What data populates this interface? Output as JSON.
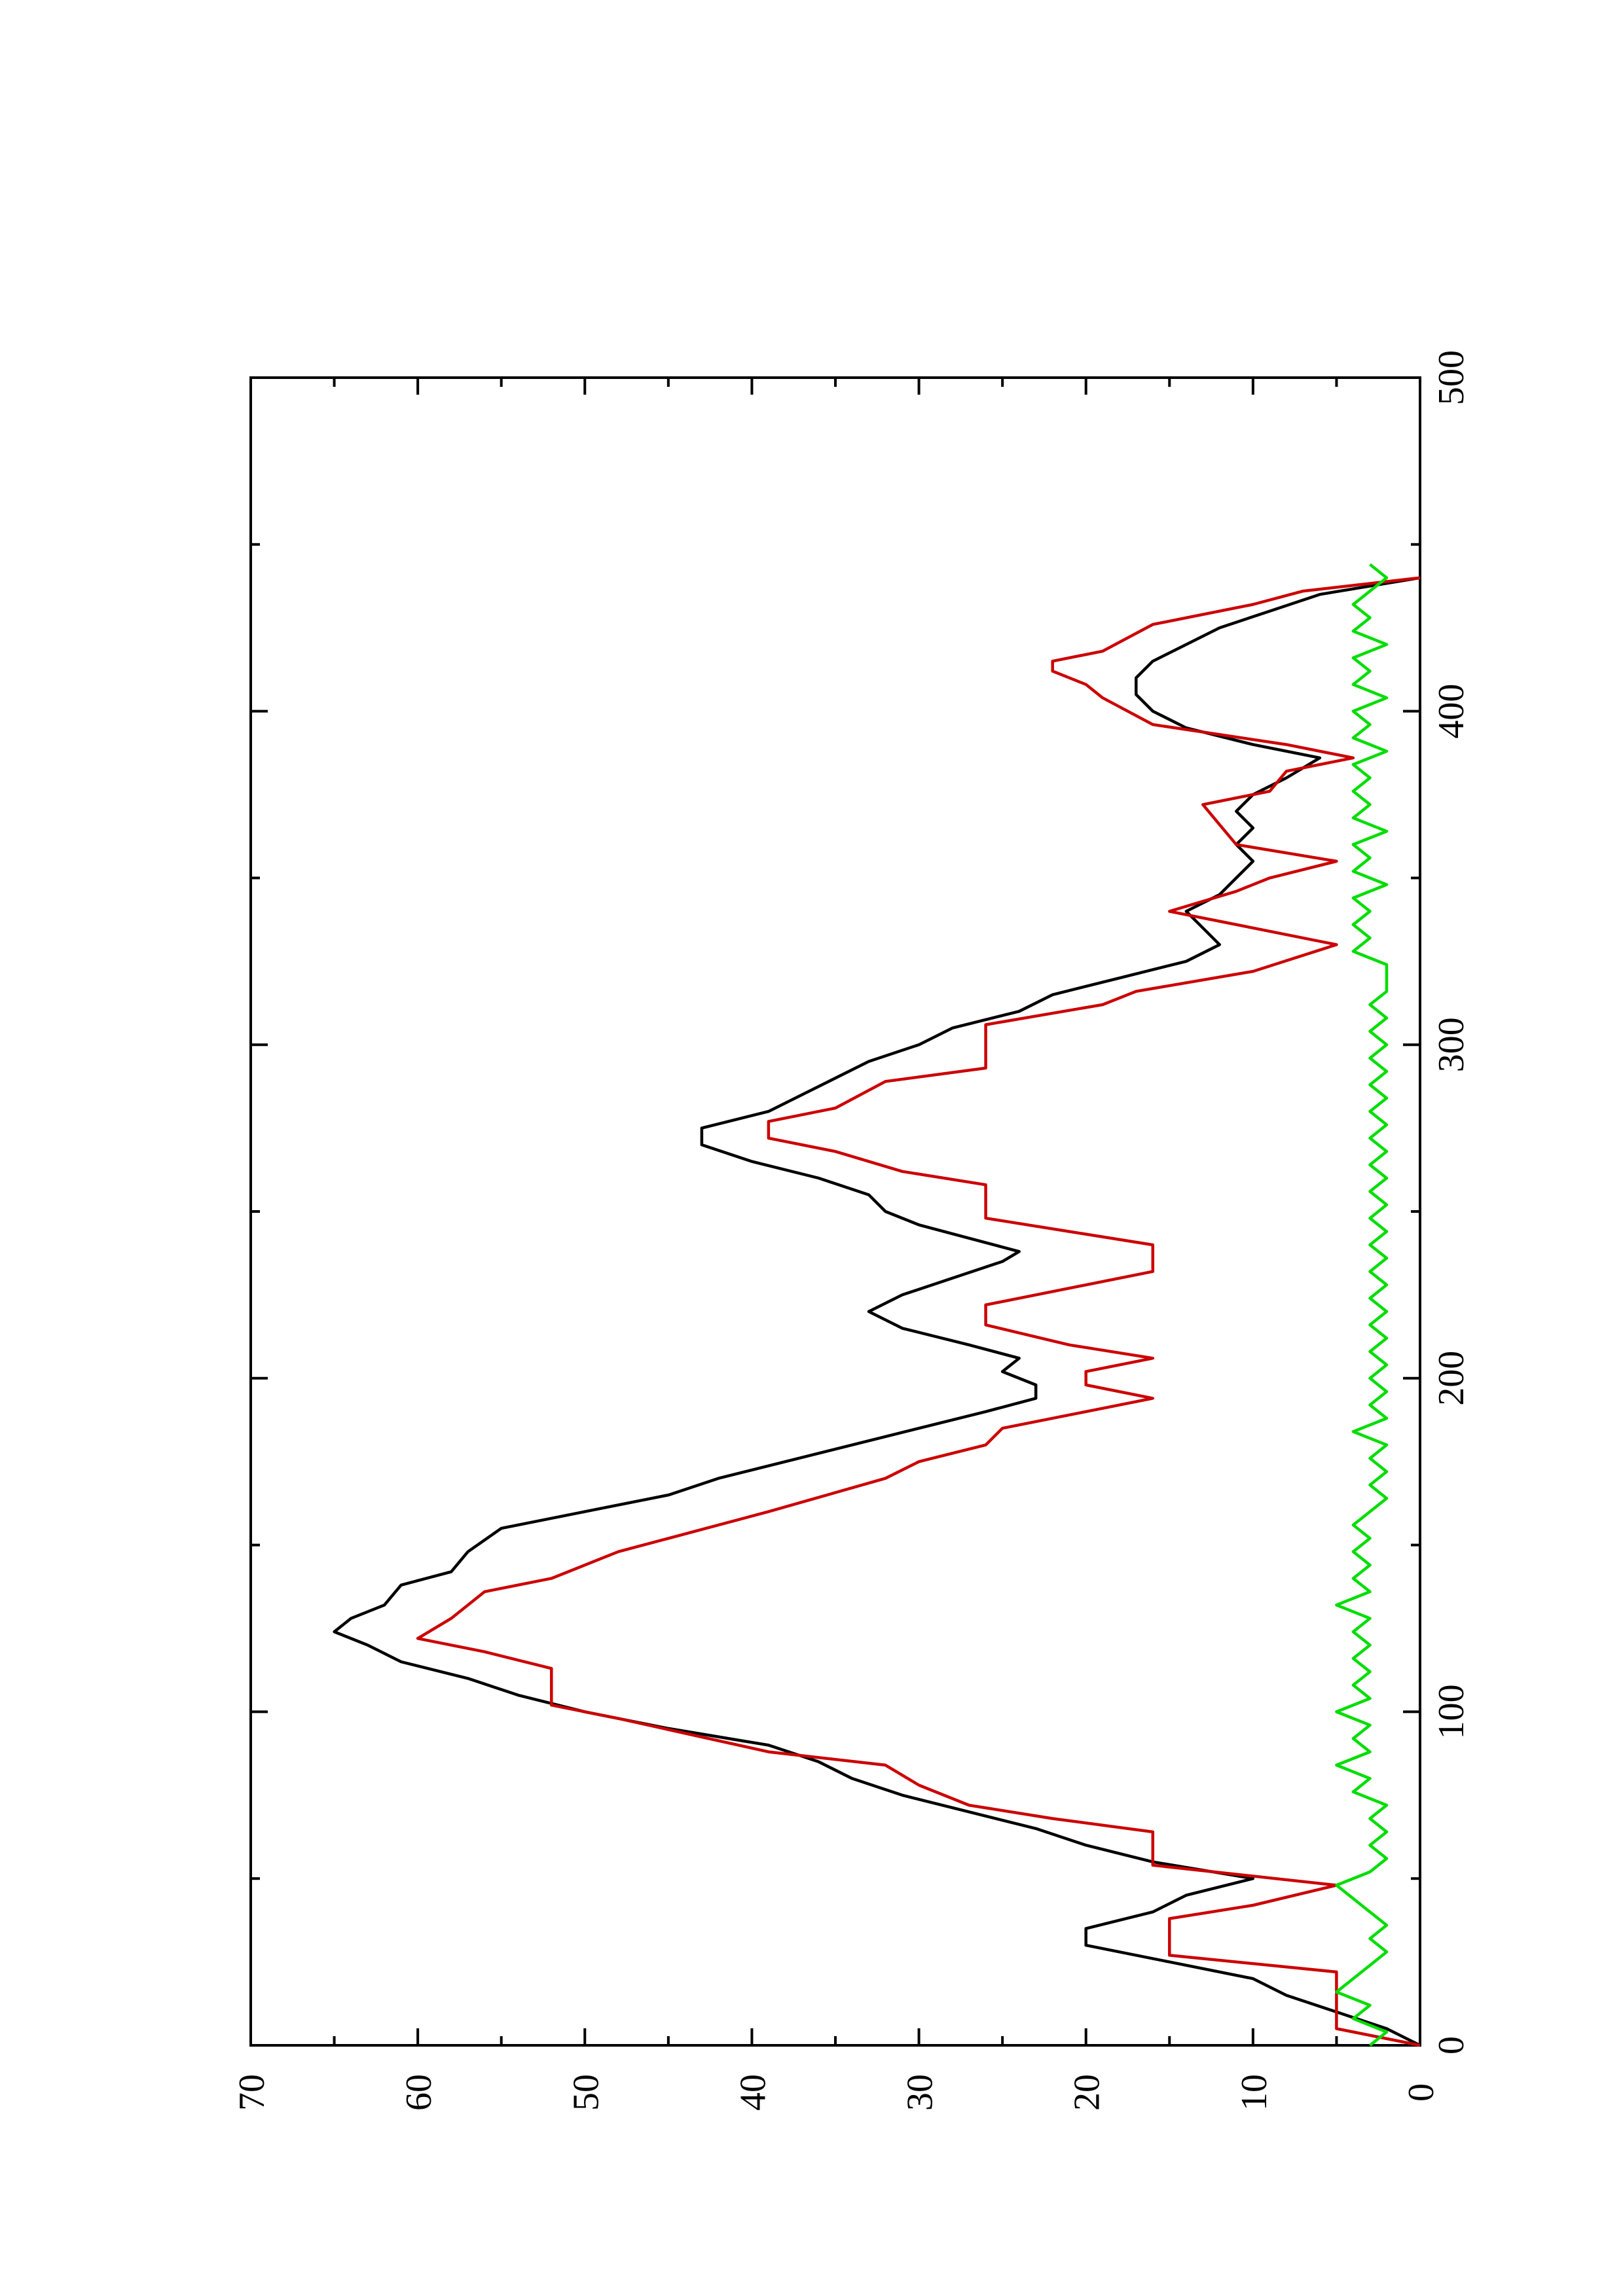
{
  "chart_data": {
    "type": "line",
    "orientation": "rotated-90-ccw",
    "title": "",
    "xlabel": "",
    "ylabel": "",
    "xlim": [
      0,
      500
    ],
    "ylim": [
      0,
      70
    ],
    "x_ticks": [
      0,
      100,
      200,
      300,
      400,
      500
    ],
    "x_minor_ticks": [
      50,
      150,
      250,
      350,
      450
    ],
    "y_ticks": [
      0,
      10,
      20,
      30,
      40,
      50,
      60,
      70
    ],
    "y_minor_ticks": [
      5,
      15,
      25,
      35,
      45,
      55,
      65
    ],
    "grid": false,
    "legend": "none",
    "series": [
      {
        "color": "#000000",
        "points": [
          [
            0,
            0
          ],
          [
            5,
            2
          ],
          [
            10,
            5
          ],
          [
            15,
            8
          ],
          [
            20,
            10
          ],
          [
            25,
            15
          ],
          [
            30,
            20
          ],
          [
            35,
            20
          ],
          [
            40,
            16
          ],
          [
            45,
            14
          ],
          [
            50,
            10
          ],
          [
            55,
            16
          ],
          [
            60,
            20
          ],
          [
            65,
            23
          ],
          [
            70,
            27
          ],
          [
            75,
            31
          ],
          [
            80,
            34
          ],
          [
            85,
            36
          ],
          [
            90,
            39
          ],
          [
            95,
            45
          ],
          [
            100,
            50
          ],
          [
            105,
            54
          ],
          [
            110,
            57
          ],
          [
            115,
            61
          ],
          [
            120,
            63
          ],
          [
            124,
            65
          ],
          [
            128,
            64
          ],
          [
            132,
            62
          ],
          [
            138,
            61
          ],
          [
            142,
            58
          ],
          [
            148,
            57
          ],
          [
            155,
            55
          ],
          [
            160,
            50
          ],
          [
            165,
            45
          ],
          [
            170,
            42
          ],
          [
            175,
            38
          ],
          [
            180,
            34
          ],
          [
            185,
            30
          ],
          [
            190,
            26
          ],
          [
            194,
            23
          ],
          [
            198,
            23
          ],
          [
            202,
            25
          ],
          [
            206,
            24
          ],
          [
            210,
            27
          ],
          [
            215,
            31
          ],
          [
            220,
            33
          ],
          [
            225,
            31
          ],
          [
            230,
            28
          ],
          [
            235,
            25
          ],
          [
            238,
            24
          ],
          [
            242,
            27
          ],
          [
            246,
            30
          ],
          [
            250,
            32
          ],
          [
            255,
            33
          ],
          [
            260,
            36
          ],
          [
            265,
            40
          ],
          [
            270,
            43
          ],
          [
            275,
            43
          ],
          [
            280,
            39
          ],
          [
            285,
            37
          ],
          [
            290,
            35
          ],
          [
            295,
            33
          ],
          [
            300,
            30
          ],
          [
            305,
            28
          ],
          [
            310,
            24
          ],
          [
            315,
            22
          ],
          [
            320,
            18
          ],
          [
            325,
            14
          ],
          [
            330,
            12
          ],
          [
            335,
            13
          ],
          [
            340,
            14
          ],
          [
            345,
            12
          ],
          [
            350,
            11
          ],
          [
            355,
            10
          ],
          [
            360,
            11
          ],
          [
            365,
            10
          ],
          [
            370,
            11
          ],
          [
            375,
            10
          ],
          [
            380,
            8
          ],
          [
            386,
            6
          ],
          [
            390,
            10
          ],
          [
            395,
            14
          ],
          [
            400,
            16
          ],
          [
            405,
            17
          ],
          [
            410,
            17
          ],
          [
            415,
            16
          ],
          [
            420,
            14
          ],
          [
            425,
            12
          ],
          [
            430,
            9
          ],
          [
            435,
            6
          ],
          [
            440,
            0
          ]
        ]
      },
      {
        "color": "#cc0000",
        "points": [
          [
            0,
            0
          ],
          [
            5,
            5
          ],
          [
            22,
            5
          ],
          [
            27,
            15
          ],
          [
            38,
            15
          ],
          [
            42,
            10
          ],
          [
            48,
            5
          ],
          [
            54,
            16
          ],
          [
            64,
            16
          ],
          [
            68,
            22
          ],
          [
            72,
            27
          ],
          [
            78,
            30
          ],
          [
            84,
            32
          ],
          [
            88,
            39
          ],
          [
            98,
            48
          ],
          [
            102,
            52
          ],
          [
            113,
            52
          ],
          [
            118,
            56
          ],
          [
            122,
            60
          ],
          [
            128,
            58
          ],
          [
            136,
            56
          ],
          [
            140,
            52
          ],
          [
            148,
            48
          ],
          [
            152,
            45
          ],
          [
            160,
            39
          ],
          [
            170,
            32
          ],
          [
            175,
            30
          ],
          [
            180,
            26
          ],
          [
            185,
            25
          ],
          [
            190,
            20
          ],
          [
            194,
            16
          ],
          [
            198,
            20
          ],
          [
            202,
            20
          ],
          [
            206,
            16
          ],
          [
            210,
            21
          ],
          [
            216,
            26
          ],
          [
            222,
            26
          ],
          [
            226,
            22
          ],
          [
            232,
            16
          ],
          [
            240,
            16
          ],
          [
            244,
            21
          ],
          [
            248,
            26
          ],
          [
            258,
            26
          ],
          [
            262,
            31
          ],
          [
            268,
            35
          ],
          [
            272,
            39
          ],
          [
            277,
            39
          ],
          [
            281,
            35
          ],
          [
            289,
            32
          ],
          [
            293,
            26
          ],
          [
            306,
            26
          ],
          [
            312,
            19
          ],
          [
            316,
            17
          ],
          [
            322,
            10
          ],
          [
            330,
            5
          ],
          [
            335,
            10
          ],
          [
            340,
            15
          ],
          [
            346,
            11
          ],
          [
            350,
            9
          ],
          [
            355,
            5
          ],
          [
            360,
            11
          ],
          [
            366,
            12
          ],
          [
            372,
            13
          ],
          [
            376,
            9
          ],
          [
            382,
            8
          ],
          [
            386,
            4
          ],
          [
            390,
            8
          ],
          [
            396,
            16
          ],
          [
            404,
            19
          ],
          [
            408,
            20
          ],
          [
            412,
            22
          ],
          [
            415,
            22
          ],
          [
            418,
            19
          ],
          [
            426,
            16
          ],
          [
            432,
            10
          ],
          [
            436,
            7
          ],
          [
            440,
            0
          ]
        ]
      },
      {
        "color": "#00dd00",
        "points": [
          [
            0,
            3
          ],
          [
            4,
            2
          ],
          [
            8,
            4
          ],
          [
            12,
            3
          ],
          [
            16,
            5
          ],
          [
            20,
            4
          ],
          [
            24,
            3
          ],
          [
            28,
            2
          ],
          [
            32,
            3
          ],
          [
            36,
            2
          ],
          [
            40,
            3
          ],
          [
            44,
            4
          ],
          [
            48,
            5
          ],
          [
            52,
            3
          ],
          [
            56,
            2
          ],
          [
            60,
            3
          ],
          [
            64,
            2
          ],
          [
            68,
            3
          ],
          [
            72,
            2
          ],
          [
            76,
            4
          ],
          [
            80,
            3
          ],
          [
            84,
            5
          ],
          [
            88,
            3
          ],
          [
            92,
            4
          ],
          [
            96,
            3
          ],
          [
            100,
            5
          ],
          [
            104,
            3
          ],
          [
            108,
            4
          ],
          [
            112,
            3
          ],
          [
            116,
            4
          ],
          [
            120,
            3
          ],
          [
            124,
            4
          ],
          [
            128,
            3
          ],
          [
            132,
            5
          ],
          [
            136,
            3
          ],
          [
            140,
            4
          ],
          [
            144,
            3
          ],
          [
            148,
            4
          ],
          [
            152,
            3
          ],
          [
            156,
            4
          ],
          [
            160,
            3
          ],
          [
            164,
            2
          ],
          [
            168,
            3
          ],
          [
            172,
            2
          ],
          [
            176,
            3
          ],
          [
            180,
            2
          ],
          [
            184,
            4
          ],
          [
            188,
            2
          ],
          [
            192,
            3
          ],
          [
            196,
            2
          ],
          [
            200,
            3
          ],
          [
            204,
            2
          ],
          [
            208,
            3
          ],
          [
            212,
            2
          ],
          [
            216,
            3
          ],
          [
            220,
            2
          ],
          [
            224,
            3
          ],
          [
            228,
            2
          ],
          [
            232,
            3
          ],
          [
            236,
            2
          ],
          [
            240,
            3
          ],
          [
            244,
            2
          ],
          [
            248,
            3
          ],
          [
            252,
            2
          ],
          [
            256,
            3
          ],
          [
            260,
            2
          ],
          [
            264,
            3
          ],
          [
            268,
            2
          ],
          [
            272,
            3
          ],
          [
            276,
            2
          ],
          [
            280,
            3
          ],
          [
            284,
            2
          ],
          [
            288,
            3
          ],
          [
            292,
            2
          ],
          [
            296,
            3
          ],
          [
            300,
            2
          ],
          [
            304,
            3
          ],
          [
            308,
            2
          ],
          [
            312,
            3
          ],
          [
            316,
            2
          ],
          [
            320,
            2
          ],
          [
            324,
            2
          ],
          [
            328,
            4
          ],
          [
            332,
            3
          ],
          [
            336,
            4
          ],
          [
            340,
            3
          ],
          [
            344,
            4
          ],
          [
            348,
            2
          ],
          [
            352,
            4
          ],
          [
            356,
            3
          ],
          [
            360,
            4
          ],
          [
            364,
            2
          ],
          [
            368,
            4
          ],
          [
            372,
            3
          ],
          [
            376,
            4
          ],
          [
            380,
            3
          ],
          [
            384,
            4
          ],
          [
            388,
            2
          ],
          [
            392,
            4
          ],
          [
            396,
            3
          ],
          [
            400,
            4
          ],
          [
            404,
            2
          ],
          [
            408,
            4
          ],
          [
            412,
            3
          ],
          [
            416,
            4
          ],
          [
            420,
            2
          ],
          [
            424,
            4
          ],
          [
            428,
            3
          ],
          [
            432,
            4
          ],
          [
            436,
            3
          ],
          [
            440,
            2
          ],
          [
            444,
            3
          ]
        ]
      }
    ]
  }
}
